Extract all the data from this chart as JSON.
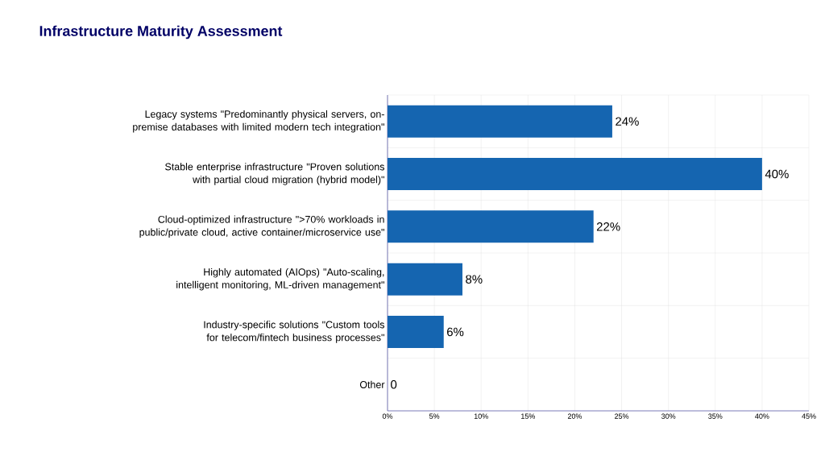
{
  "chart_data": {
    "type": "bar",
    "orientation": "horizontal",
    "title": "Infrastructure Maturity Assessment",
    "categories": [
      "Legacy systems \"Predominantly physical servers, on-premise databases with limited modern tech integration\"",
      "Stable enterprise infrastructure \"Proven solutions with partial cloud migration (hybrid model)\"",
      "Cloud-optimized infrastructure \">70% workloads in public/private cloud, active container/microservice use\"",
      "Highly automated (AIOps) \"Auto-scaling, intelligent monitoring, ML-driven management\"",
      "Industry-specific solutions \"Custom tools for telecom/fintech business processes\"",
      "Other"
    ],
    "values": [
      24,
      40,
      22,
      8,
      6,
      0
    ],
    "value_labels": [
      "24%",
      "40%",
      "22%",
      "8%",
      "6%",
      "0"
    ],
    "color": "#1565b0",
    "xlim": [
      0,
      45
    ],
    "xticks": [
      {
        "value": 0,
        "label": "0%"
      },
      {
        "value": 5,
        "label": "5%"
      },
      {
        "value": 10,
        "label": "10%"
      },
      {
        "value": 15,
        "label": "15%"
      },
      {
        "value": 20,
        "label": "20%"
      },
      {
        "value": 25,
        "label": "25%"
      },
      {
        "value": 30,
        "label": "30%"
      },
      {
        "value": 35,
        "label": "35%"
      },
      {
        "value": 40,
        "label": "40%"
      },
      {
        "value": 45,
        "label": "45%"
      }
    ],
    "grid": true
  }
}
